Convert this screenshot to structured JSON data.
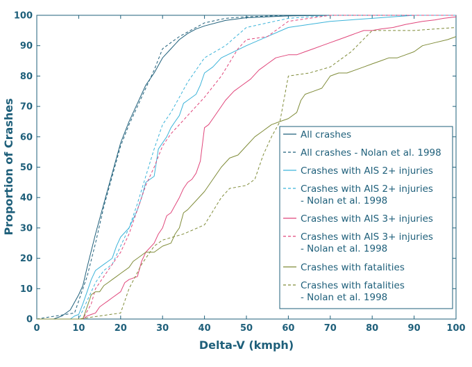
{
  "chart_data": {
    "type": "line",
    "title": "",
    "xlabel": "Delta-V (kmph)",
    "ylabel": "Proportion of Crashes",
    "xlim": [
      0,
      100
    ],
    "ylim": [
      0,
      100
    ],
    "xticks": [
      0,
      10,
      20,
      30,
      40,
      50,
      60,
      70,
      80,
      90,
      100
    ],
    "yticks": [
      0,
      10,
      20,
      30,
      40,
      50,
      60,
      70,
      80,
      90,
      100
    ],
    "grid": false,
    "legend_position": "right-middle",
    "series": [
      {
        "name": "All crashes",
        "color": "#1e5f7a",
        "dash": "solid",
        "points": [
          [
            0,
            0
          ],
          [
            4,
            0
          ],
          [
            6,
            1
          ],
          [
            8,
            3
          ],
          [
            10,
            8
          ],
          [
            11,
            11
          ],
          [
            12,
            17
          ],
          [
            14,
            28
          ],
          [
            16,
            38
          ],
          [
            18,
            48
          ],
          [
            20,
            58
          ],
          [
            22,
            65
          ],
          [
            24,
            71
          ],
          [
            26,
            77
          ],
          [
            28,
            81
          ],
          [
            30,
            86
          ],
          [
            32,
            89
          ],
          [
            34,
            92
          ],
          [
            36,
            94
          ],
          [
            38,
            95.5
          ],
          [
            40,
            96.5
          ],
          [
            45,
            98.3
          ],
          [
            50,
            99.2
          ],
          [
            60,
            99.8
          ],
          [
            70,
            100
          ],
          [
            100,
            100
          ]
        ]
      },
      {
        "name": "All crashes - Nolan et al. 1998",
        "color": "#1e5f7a",
        "dash": "dashed",
        "points": [
          [
            0,
            0
          ],
          [
            9,
            2
          ],
          [
            10,
            6
          ],
          [
            12,
            14
          ],
          [
            14,
            25
          ],
          [
            16,
            37
          ],
          [
            18,
            47
          ],
          [
            20,
            57
          ],
          [
            22,
            64
          ],
          [
            24,
            70
          ],
          [
            26,
            76
          ],
          [
            28,
            82
          ],
          [
            30,
            89
          ],
          [
            32,
            91
          ],
          [
            34,
            93
          ],
          [
            36,
            94.5
          ],
          [
            40,
            97.5
          ],
          [
            45,
            99
          ],
          [
            50,
            99.5
          ],
          [
            60,
            100
          ],
          [
            100,
            100
          ]
        ]
      },
      {
        "name": "Crashes with AIS 2+ injuries",
        "color": "#3bb3d9",
        "dash": "solid",
        "points": [
          [
            0,
            0
          ],
          [
            8,
            0
          ],
          [
            9,
            1
          ],
          [
            10,
            1.5
          ],
          [
            11,
            5
          ],
          [
            12,
            9
          ],
          [
            13,
            13
          ],
          [
            14,
            16
          ],
          [
            15,
            17
          ],
          [
            16,
            18
          ],
          [
            17,
            19
          ],
          [
            18,
            20
          ],
          [
            19,
            24
          ],
          [
            20,
            27
          ],
          [
            22,
            30
          ],
          [
            24,
            36
          ],
          [
            25,
            40
          ],
          [
            26,
            45
          ],
          [
            28,
            47
          ],
          [
            29,
            56
          ],
          [
            31,
            60
          ],
          [
            32,
            63
          ],
          [
            33,
            65
          ],
          [
            34,
            67
          ],
          [
            35,
            71
          ],
          [
            36,
            72
          ],
          [
            38,
            74
          ],
          [
            39,
            77
          ],
          [
            40,
            81
          ],
          [
            42,
            83
          ],
          [
            44,
            86
          ],
          [
            47,
            88
          ],
          [
            50,
            90
          ],
          [
            55,
            93
          ],
          [
            60,
            96
          ],
          [
            65,
            97
          ],
          [
            70,
            98
          ],
          [
            80,
            99
          ],
          [
            90,
            100
          ],
          [
            100,
            100
          ]
        ]
      },
      {
        "name": "Crashes with AIS 2+ injuries - Nolan et al. 1998",
        "color": "#3bb3d9",
        "dash": "dashed",
        "points": [
          [
            0,
            0
          ],
          [
            10,
            0
          ],
          [
            12,
            6
          ],
          [
            14,
            12
          ],
          [
            16,
            16
          ],
          [
            18,
            18
          ],
          [
            20,
            24
          ],
          [
            22,
            30
          ],
          [
            24,
            38
          ],
          [
            26,
            47
          ],
          [
            28,
            56
          ],
          [
            30,
            64
          ],
          [
            32,
            68
          ],
          [
            34,
            73
          ],
          [
            36,
            78
          ],
          [
            38,
            82
          ],
          [
            40,
            86
          ],
          [
            45,
            90
          ],
          [
            50,
            96
          ],
          [
            60,
            99
          ],
          [
            70,
            100
          ],
          [
            100,
            100
          ]
        ]
      },
      {
        "name": "Crashes with AIS 3+ injuries",
        "color": "#e0457a",
        "dash": "solid",
        "points": [
          [
            0,
            0
          ],
          [
            11,
            0
          ],
          [
            12,
            1
          ],
          [
            13,
            1.5
          ],
          [
            14,
            2
          ],
          [
            15,
            4
          ],
          [
            16,
            5
          ],
          [
            17,
            6
          ],
          [
            18,
            7
          ],
          [
            20,
            9
          ],
          [
            21,
            12
          ],
          [
            22,
            13
          ],
          [
            24,
            14
          ],
          [
            25,
            19
          ],
          [
            26,
            22
          ],
          [
            28,
            25
          ],
          [
            29,
            28
          ],
          [
            30,
            30
          ],
          [
            31,
            34
          ],
          [
            32,
            35
          ],
          [
            34,
            40
          ],
          [
            35,
            43
          ],
          [
            36,
            45
          ],
          [
            37,
            46
          ],
          [
            38,
            48
          ],
          [
            39,
            52
          ],
          [
            40,
            63
          ],
          [
            41,
            64
          ],
          [
            42,
            66
          ],
          [
            44,
            70
          ],
          [
            45,
            72
          ],
          [
            47,
            75
          ],
          [
            49,
            77
          ],
          [
            51,
            79
          ],
          [
            53,
            82
          ],
          [
            55,
            84
          ],
          [
            57,
            86
          ],
          [
            60,
            87
          ],
          [
            62,
            87
          ],
          [
            64,
            88
          ],
          [
            66,
            89
          ],
          [
            68,
            90
          ],
          [
            70,
            91
          ],
          [
            72,
            92
          ],
          [
            74,
            93
          ],
          [
            76,
            94
          ],
          [
            78,
            95
          ],
          [
            80,
            95
          ],
          [
            82,
            95.5
          ],
          [
            85,
            96
          ],
          [
            88,
            97
          ],
          [
            92,
            98
          ],
          [
            95,
            98.5
          ],
          [
            97,
            99
          ],
          [
            100,
            99.5
          ]
        ]
      },
      {
        "name": "Crashes with AIS 3+ injuries - Nolan et al. 1998",
        "color": "#e0457a",
        "dash": "dashed",
        "points": [
          [
            0,
            0
          ],
          [
            11,
            0
          ],
          [
            13,
            5
          ],
          [
            14,
            10
          ],
          [
            16,
            14
          ],
          [
            18,
            18
          ],
          [
            20,
            22
          ],
          [
            22,
            28
          ],
          [
            24,
            36
          ],
          [
            26,
            44
          ],
          [
            28,
            50
          ],
          [
            30,
            57
          ],
          [
            32,
            61
          ],
          [
            34,
            64
          ],
          [
            36,
            67
          ],
          [
            38,
            70
          ],
          [
            40,
            73
          ],
          [
            44,
            80
          ],
          [
            48,
            89
          ],
          [
            50,
            92
          ],
          [
            55,
            93
          ],
          [
            60,
            98
          ],
          [
            70,
            100
          ],
          [
            100,
            100
          ]
        ]
      },
      {
        "name": "Crashes with fatalities",
        "color": "#7f8b38",
        "dash": "solid",
        "points": [
          [
            0,
            0
          ],
          [
            11,
            0
          ],
          [
            12,
            4
          ],
          [
            13,
            8
          ],
          [
            14,
            9
          ],
          [
            15,
            9
          ],
          [
            16,
            11
          ],
          [
            17,
            12
          ],
          [
            18,
            13
          ],
          [
            19,
            14
          ],
          [
            20,
            15
          ],
          [
            22,
            17
          ],
          [
            23,
            19
          ],
          [
            24,
            20
          ],
          [
            26,
            22
          ],
          [
            28,
            22
          ],
          [
            30,
            24
          ],
          [
            32,
            25
          ],
          [
            33,
            28
          ],
          [
            34,
            30
          ],
          [
            35,
            35
          ],
          [
            36,
            36
          ],
          [
            38,
            39
          ],
          [
            40,
            42
          ],
          [
            42,
            46
          ],
          [
            44,
            50
          ],
          [
            46,
            53
          ],
          [
            48,
            54
          ],
          [
            50,
            57
          ],
          [
            52,
            60
          ],
          [
            54,
            62
          ],
          [
            56,
            64
          ],
          [
            58,
            65
          ],
          [
            60,
            66
          ],
          [
            62,
            68
          ],
          [
            63,
            72
          ],
          [
            64,
            74
          ],
          [
            66,
            75
          ],
          [
            68,
            76
          ],
          [
            70,
            80
          ],
          [
            72,
            81
          ],
          [
            74,
            81
          ],
          [
            76,
            82
          ],
          [
            78,
            83
          ],
          [
            80,
            84
          ],
          [
            82,
            85
          ],
          [
            84,
            86
          ],
          [
            86,
            86
          ],
          [
            88,
            87
          ],
          [
            90,
            88
          ],
          [
            92,
            90
          ],
          [
            95,
            91
          ],
          [
            98,
            92
          ],
          [
            100,
            93
          ]
        ]
      },
      {
        "name": "Crashes with fatalities - Nolan et al. 1998",
        "color": "#7f8b38",
        "dash": "dashed",
        "points": [
          [
            0,
            0
          ],
          [
            10,
            0
          ],
          [
            15,
            1
          ],
          [
            20,
            2
          ],
          [
            22,
            10
          ],
          [
            25,
            18
          ],
          [
            28,
            24
          ],
          [
            30,
            26
          ],
          [
            35,
            28
          ],
          [
            40,
            31
          ],
          [
            44,
            40
          ],
          [
            46,
            43
          ],
          [
            50,
            44
          ],
          [
            52,
            46
          ],
          [
            54,
            54
          ],
          [
            56,
            60
          ],
          [
            58,
            65
          ],
          [
            60,
            80
          ],
          [
            65,
            81
          ],
          [
            70,
            83
          ],
          [
            75,
            88
          ],
          [
            80,
            95
          ],
          [
            90,
            95
          ],
          [
            100,
            96
          ]
        ]
      }
    ]
  },
  "legend": {
    "entries": [
      {
        "line1": "All crashes",
        "line2": "",
        "color": "#1e5f7a",
        "dash": "solid"
      },
      {
        "line1": "All crashes - Nolan et al. 1998",
        "line2": "",
        "color": "#1e5f7a",
        "dash": "dashed"
      },
      {
        "line1": "Crashes with AIS 2+ injuries",
        "line2": "",
        "color": "#3bb3d9",
        "dash": "solid"
      },
      {
        "line1": "Crashes with AIS 2+ injuries",
        "line2": "- Nolan et al. 1998",
        "color": "#3bb3d9",
        "dash": "dashed"
      },
      {
        "line1": "Crashes with AIS 3+ injuries",
        "line2": "",
        "color": "#e0457a",
        "dash": "solid"
      },
      {
        "line1": "Crashes with AIS 3+ injuries",
        "line2": "- Nolan et al. 1998",
        "color": "#e0457a",
        "dash": "dashed"
      },
      {
        "line1": "Crashes with fatalities",
        "line2": "",
        "color": "#7f8b38",
        "dash": "solid"
      },
      {
        "line1": "Crashes with fatalities",
        "line2": "- Nolan et al. 1998",
        "color": "#7f8b38",
        "dash": "dashed"
      }
    ]
  },
  "colors": {
    "axis": "#1e5f7a"
  }
}
